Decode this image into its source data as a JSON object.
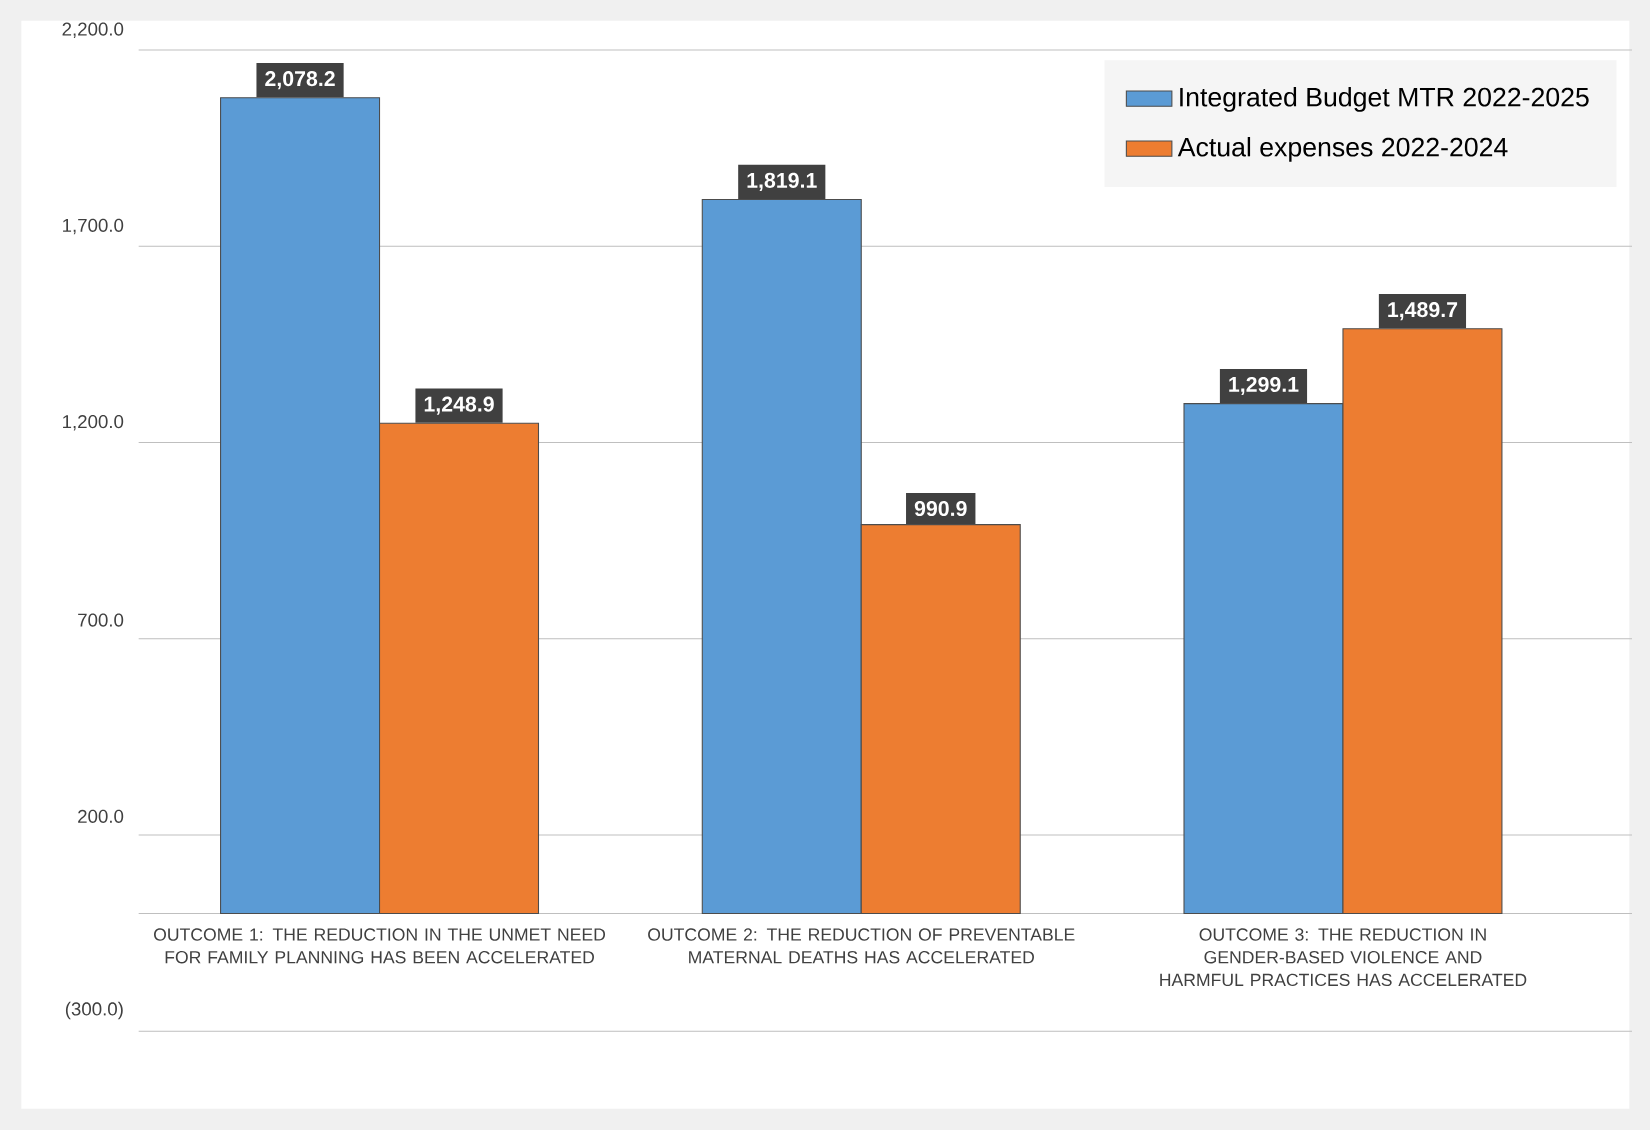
{
  "chart_data": {
    "type": "bar",
    "categories": [
      "OUTCOME 1: THE REDUCTION IN THE UNMET NEED FOR FAMILY PLANNING HAS BEEN ACCELERATED",
      "OUTCOME 2: THE REDUCTION OF PREVENTABLE MATERNAL DEATHS HAS ACCELERATED",
      "OUTCOME 3: THE REDUCTION IN GENDER-BASED VIOLENCE AND HARMFUL PRACTICES HAS ACCELERATED"
    ],
    "series": [
      {
        "name": "Integrated Budget MTR 2022-2025",
        "color": "#5b9bd5",
        "values": [
          2078.2,
          1819.1,
          1299.1
        ],
        "value_labels": [
          "2,078.2",
          "1,819.1",
          "1,299.1"
        ]
      },
      {
        "name": "Actual expenses 2022-2024",
        "color": "#ed7d31",
        "values": [
          1248.9,
          990.9,
          1489.7
        ],
        "value_labels": [
          "1,248.9",
          "990.9",
          "1,489.7"
        ]
      }
    ],
    "ylim": [
      -300,
      2200
    ],
    "yticks": [
      {
        "value": -300,
        "label": "(300.0)"
      },
      {
        "value": 200,
        "label": "200.0"
      },
      {
        "value": 700,
        "label": "700.0"
      },
      {
        "value": 1200,
        "label": "1,200.0"
      },
      {
        "value": 1700,
        "label": "1,700.0"
      },
      {
        "value": 2200,
        "label": "2,200.0"
      }
    ],
    "grid": "y",
    "legend": "top right"
  }
}
